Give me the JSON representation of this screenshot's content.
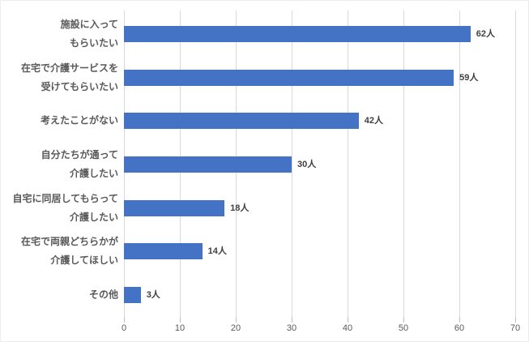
{
  "chart_data": {
    "type": "bar",
    "orientation": "horizontal",
    "title": "",
    "xlabel": "",
    "ylabel": "",
    "categories": [
      "施設に入って\nもらいたい",
      "在宅で介護サービスを\n受けてもらいたい",
      "考えたことがない",
      "自分たちが通って\n介護したい",
      "自宅に同居してもらって\n介護したい",
      "在宅で両親どちらかが\n介護してほしい",
      "その他"
    ],
    "values": [
      62,
      59,
      42,
      30,
      18,
      14,
      3
    ],
    "data_labels": [
      "62人",
      "59人",
      "42人",
      "30人",
      "18人",
      "14人",
      "3人"
    ],
    "unit": "人",
    "x_ticks": [
      0,
      10,
      20,
      30,
      40,
      50,
      60,
      70
    ],
    "xlim": [
      0,
      70
    ],
    "grid": "vertical",
    "legend": "none",
    "colors": {
      "bar": "#4472C4",
      "gridline": "#D9D9D9",
      "tick_mark": "#BFBFBF",
      "axis_label": "#595959",
      "category_label": "#595959",
      "data_label": "#404040",
      "background": "#FFFFFF"
    }
  }
}
